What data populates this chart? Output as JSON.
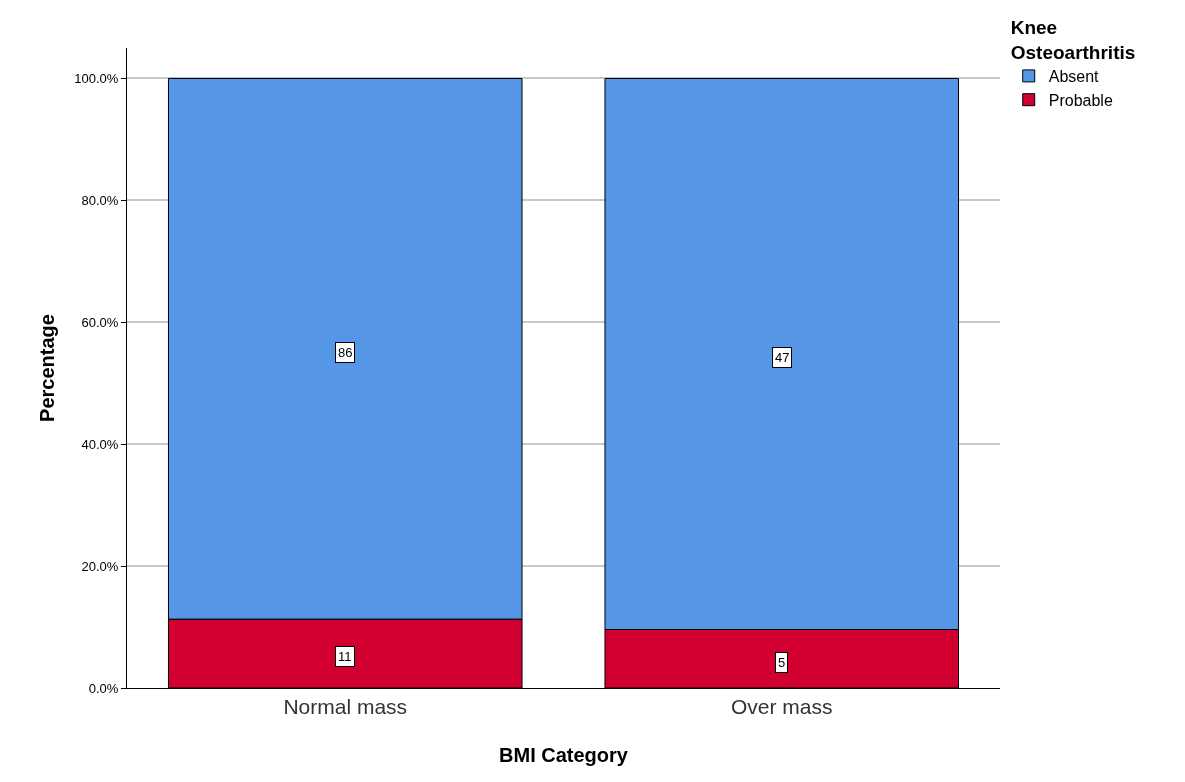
{
  "chart_data": {
    "type": "bar",
    "stacked": true,
    "xlabel": "BMI Category",
    "ylabel": "Percentage",
    "legend_title": "Knee Osteoarthritis",
    "legend": "top right",
    "grid": "y",
    "categories": [
      "Normal mass",
      "Over mass"
    ],
    "series": [
      {
        "name": "Probable",
        "color": "#d20030",
        "values": [
          11.3,
          9.6
        ]
      },
      {
        "name": "Absent",
        "color": "#5596e6",
        "values": [
          88.7,
          90.4
        ]
      }
    ],
    "annotations": [
      {
        "text": "11",
        "x": "Normal mass",
        "y": 5.1
      },
      {
        "text": "86",
        "x": "Normal mass",
        "y": 55.1
      },
      {
        "text": "5",
        "x": "Over mass",
        "y": 4.2
      },
      {
        "text": "47",
        "x": "Over mass",
        "y": 54.3
      }
    ],
    "ylim": [
      0,
      105
    ],
    "yticks": [
      {
        "value": 0,
        "label": "0.0%"
      },
      {
        "value": 20,
        "label": "20.0%"
      },
      {
        "value": 40,
        "label": "40.0%"
      },
      {
        "value": 60,
        "label": "60.0%"
      },
      {
        "value": 80,
        "label": "80.0%"
      },
      {
        "value": 100,
        "label": "100.0%"
      }
    ]
  }
}
